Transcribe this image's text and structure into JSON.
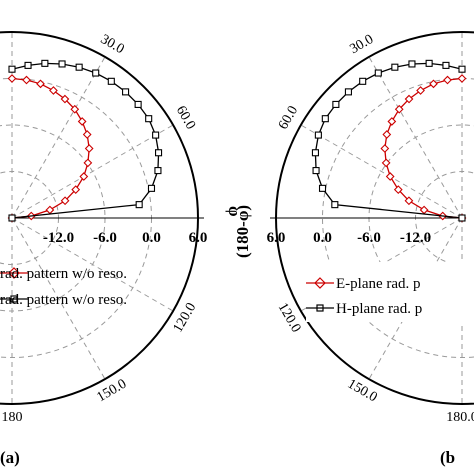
{
  "chart_data": [
    {
      "panel": "(a)",
      "type": "polar-line",
      "radial_ticks": [
        "-12.0",
        "-6.0",
        "0.0",
        "6.0"
      ],
      "angle_ticks": [
        "30.0",
        "60.0",
        "120.0",
        "150.0",
        "180"
      ],
      "axis_symbol": "φ",
      "legend": [
        {
          "label": "rad. pattern w/o reso.",
          "color": "#cc0000",
          "marker": "diamond"
        },
        {
          "label": "rad. pattern w/o reso.",
          "color": "#000000",
          "marker": "square"
        }
      ],
      "series": [
        {
          "name": "E-plane",
          "color": "#cc0000",
          "marker": "diamond",
          "angle_deg": [
            0,
            6,
            12,
            18,
            24,
            30,
            36,
            42,
            48,
            54,
            60,
            66,
            72,
            78,
            84,
            90
          ],
          "gain_db": [
            0.0,
            -0.1,
            -0.3,
            -0.7,
            -1.2,
            -1.8,
            -2.6,
            -3.5,
            -4.6,
            -5.9,
            -7.3,
            -9.0,
            -10.8,
            -13.0,
            -15.5,
            -18.0
          ]
        },
        {
          "name": "H-plane",
          "color": "#000000",
          "marker": "square",
          "angle_deg": [
            0,
            6,
            12,
            18,
            24,
            30,
            36,
            42,
            48,
            54,
            60,
            66,
            72,
            78,
            84,
            90
          ],
          "gain_db": [
            1.2,
            1.8,
            2.4,
            2.9,
            3.3,
            3.6,
            3.8,
            3.9,
            3.9,
            3.8,
            3.4,
            2.7,
            1.8,
            0.4,
            -1.5,
            -18.0
          ]
        }
      ]
    },
    {
      "panel": "(b",
      "type": "polar-line",
      "radial_ticks": [
        "6.0",
        "0.0",
        "-6.0",
        "-12.0"
      ],
      "angle_ticks": [
        "30.0",
        "60.0",
        "120.0",
        "150.0",
        "180.0"
      ],
      "axis_symbol": "(180-φ)",
      "legend": [
        {
          "label": "E-plane rad. p",
          "color": "#cc0000",
          "marker": "diamond"
        },
        {
          "label": "H-plane rad. p",
          "color": "#000000",
          "marker": "square"
        }
      ],
      "series": [
        {
          "name": "E-plane",
          "color": "#cc0000",
          "marker": "diamond",
          "angle_deg": [
            0,
            6,
            12,
            18,
            24,
            30,
            36,
            42,
            48,
            54,
            60,
            66,
            72,
            78,
            84,
            90
          ],
          "gain_db": [
            0.0,
            -0.1,
            -0.3,
            -0.7,
            -1.2,
            -1.8,
            -2.6,
            -3.5,
            -4.6,
            -5.9,
            -7.3,
            -9.0,
            -10.8,
            -13.0,
            -15.5,
            -18.0
          ]
        },
        {
          "name": "H-plane",
          "color": "#000000",
          "marker": "square",
          "angle_deg": [
            0,
            6,
            12,
            18,
            24,
            30,
            36,
            42,
            48,
            54,
            60,
            66,
            72,
            78,
            84,
            90
          ],
          "gain_db": [
            1.2,
            1.8,
            2.4,
            2.9,
            3.3,
            3.6,
            3.8,
            3.9,
            3.9,
            3.8,
            3.4,
            2.7,
            1.8,
            0.4,
            -1.5,
            -18.0
          ]
        }
      ]
    }
  ]
}
